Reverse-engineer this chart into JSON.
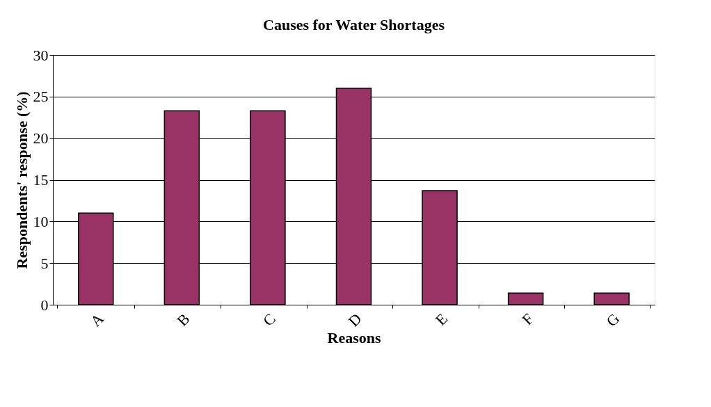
{
  "chart_data": {
    "type": "bar",
    "title": "Causes for Water Shortages",
    "xlabel": "Reasons",
    "ylabel": "Respondents' response (%)",
    "categories": [
      "A",
      "B",
      "C",
      "D",
      "E",
      "F",
      "G"
    ],
    "values": [
      11,
      23.3,
      23.3,
      26,
      13.7,
      1.4,
      1.4
    ],
    "color": "#993366",
    "ylim": [
      0,
      30
    ],
    "yticks": [
      0,
      5,
      10,
      15,
      20,
      25,
      30
    ],
    "grid": "y"
  }
}
